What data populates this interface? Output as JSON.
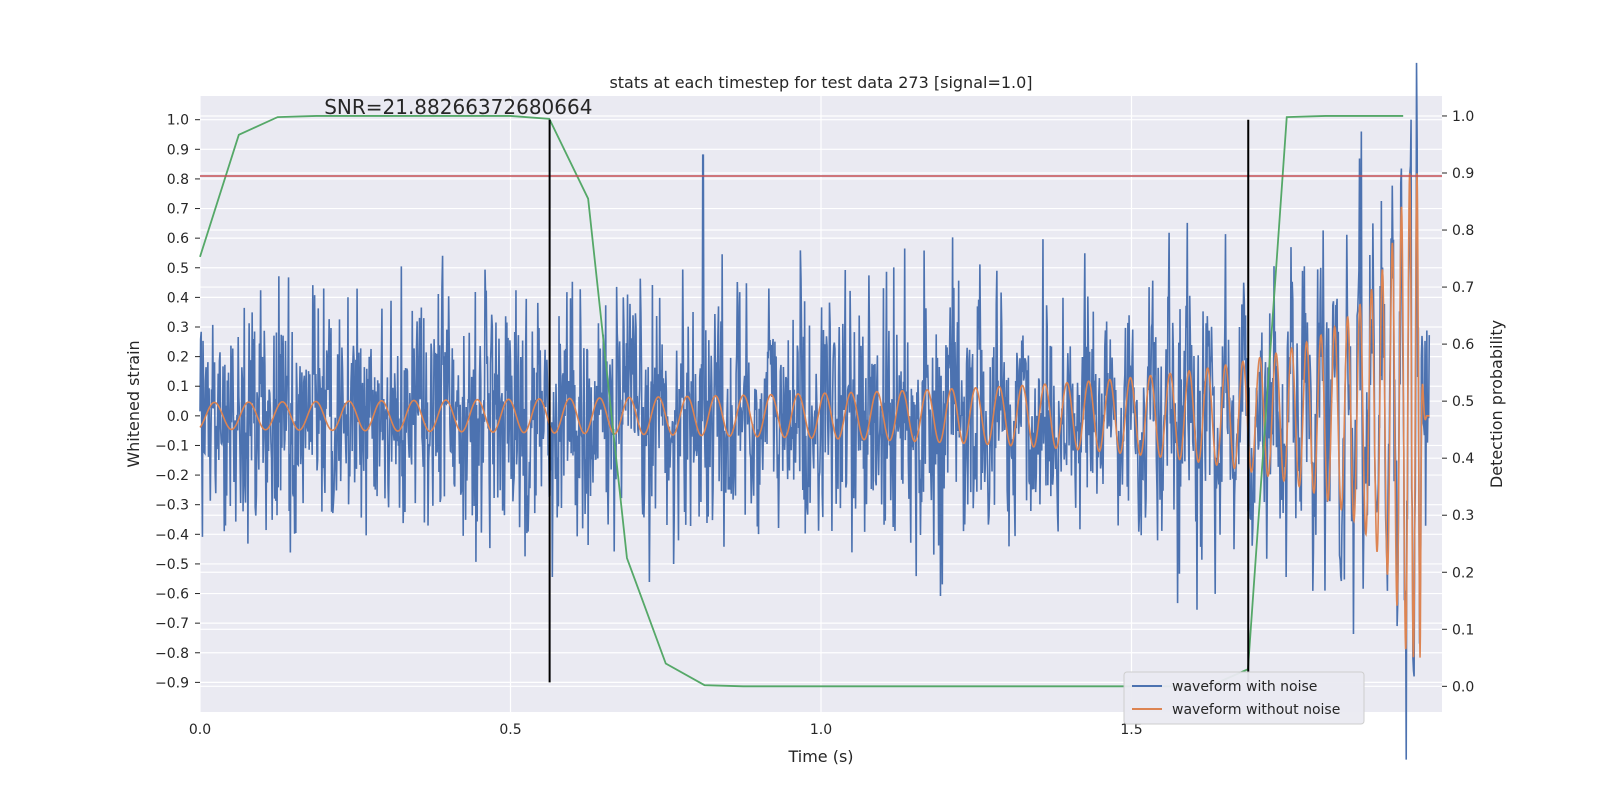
{
  "chart_data": {
    "type": "line",
    "title": "stats at each timestep for test data 273 [signal=1.0]",
    "xlabel": "Time (s)",
    "ylabel": "Whitened strain",
    "y2label": "Detection probability",
    "xlim": [
      0.0,
      2.0
    ],
    "ylim": [
      -1.0,
      1.08
    ],
    "y2lim": [
      -0.045,
      1.035
    ],
    "grid": true,
    "x_ticks": [
      0.0,
      0.5,
      1.0,
      1.5
    ],
    "x_tick_labels": [
      "0.0",
      "0.5",
      "1.0",
      "1.5"
    ],
    "y_ticks": [
      1.0,
      0.9,
      0.8,
      0.7,
      0.6,
      0.5,
      0.4,
      0.3,
      0.2,
      0.1,
      0.0,
      -0.1,
      -0.2,
      -0.3,
      -0.4,
      -0.5,
      -0.6,
      -0.7,
      -0.8,
      -0.9
    ],
    "y_tick_labels": [
      "1.0",
      "0.9",
      "0.8",
      "0.7",
      "0.6",
      "0.5",
      "0.4",
      "0.3",
      "0.2",
      "0.1",
      "0.0",
      "−0.1",
      "−0.2",
      "−0.3",
      "−0.4",
      "−0.5",
      "−0.6",
      "−0.7",
      "−0.8",
      "−0.9"
    ],
    "y2_ticks": [
      1.0,
      0.9,
      0.8,
      0.7,
      0.6,
      0.5,
      0.4,
      0.3,
      0.2,
      0.1,
      0.0
    ],
    "y2_tick_labels": [
      "1.0",
      "0.9",
      "0.8",
      "0.7",
      "0.6",
      "0.5",
      "0.4",
      "0.3",
      "0.2",
      "0.1",
      "0.0"
    ],
    "annotation": "SNR=21.88266372680664",
    "annotation_pos": {
      "x": 0.2,
      "y": 1.02
    },
    "threshold_line": {
      "y": 0.81,
      "color": "#c44e52"
    },
    "vlines": [
      {
        "x": 0.563,
        "ymin": -0.9,
        "ymax": 1.0,
        "color": "#000000"
      },
      {
        "x": 1.688,
        "ymin": -0.9,
        "ymax": 1.0,
        "color": "#000000"
      }
    ],
    "series": [
      {
        "name": "waveform with noise",
        "axis": "left",
        "color": "#4c72b0",
        "duration": 2.0,
        "n_points": 2048,
        "noise_amp_typ": 0.2,
        "noise_amp_max": 0.54,
        "spikes": [
          {
            "x": 0.81,
            "y": 0.88
          },
          {
            "x": 1.87,
            "y": 0.96
          },
          {
            "x": 1.95,
            "y": 1.0
          },
          {
            "x": 1.955,
            "y": -0.88
          }
        ],
        "x_end": 1.98
      },
      {
        "name": "waveform without noise",
        "axis": "left",
        "color": "#dd8452",
        "x_end": 1.98,
        "chirp": {
          "f0": 18.0,
          "a0": 0.045,
          "t_merge": 1.965,
          "ringdown_end": 1.975,
          "peak_amp": 0.82
        }
      },
      {
        "name": "",
        "axis": "right",
        "color": "#55a868",
        "x": [
          0.0,
          0.0625,
          0.125,
          0.1875,
          0.25,
          0.3125,
          0.375,
          0.4375,
          0.5,
          0.5625,
          0.625,
          0.6875,
          0.75,
          0.8125,
          0.875,
          0.9375,
          1.0,
          1.0625,
          1.125,
          1.1875,
          1.25,
          1.3125,
          1.375,
          1.4375,
          1.5,
          1.5625,
          1.625,
          1.6875,
          1.75,
          1.8125,
          1.875,
          1.9375
        ],
        "values": [
          0.753,
          0.967,
          0.998,
          1.0,
          1.0,
          1.0,
          1.0,
          1.0,
          1.0,
          0.995,
          0.855,
          0.225,
          0.04,
          0.002,
          0.0,
          0.0,
          0.0,
          0.0,
          0.0,
          0.0,
          0.0,
          0.0,
          0.0,
          0.0,
          0.0,
          0.0,
          0.0,
          0.03,
          0.998,
          1.0,
          1.0,
          1.0
        ]
      }
    ],
    "legend": {
      "placement": "lower-right",
      "entries": [
        "waveform with noise",
        "waveform without noise"
      ]
    }
  },
  "colors": {
    "plot_bg": "#eaeaf2",
    "grid": "#ffffff",
    "text": "#262626"
  }
}
